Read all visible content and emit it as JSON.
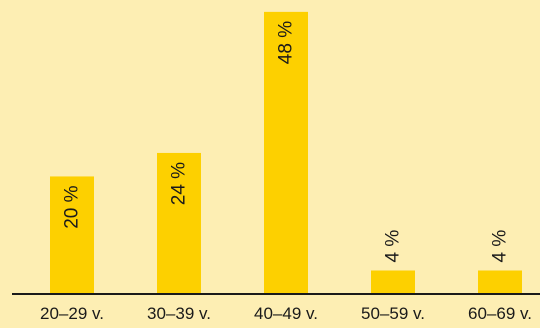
{
  "chart_data": {
    "type": "bar",
    "categories": [
      "20–29 v.",
      "30–39 v.",
      "40–49 v.",
      "50–59 v.",
      "60–69 v."
    ],
    "values": [
      20,
      24,
      48,
      4,
      4
    ],
    "value_labels": [
      "20 %",
      "24 %",
      "48 %",
      "4 %",
      "4 %"
    ],
    "title": "",
    "xlabel": "",
    "ylabel": "",
    "ylim": [
      0,
      49
    ],
    "grid": false,
    "legend": "none",
    "colors": {
      "background": "#fdeeb3",
      "bar": "#fdd000",
      "axis": "#1a1a1a",
      "text": "#1a1a1a"
    }
  }
}
